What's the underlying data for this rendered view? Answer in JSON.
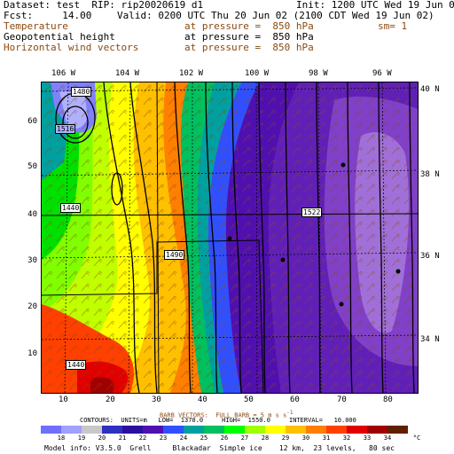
{
  "header": {
    "line1_left": "Dataset: test  RIP: rip20020619 d1",
    "line1_right": "Init: 1200 UTC Wed 19 Jun 02",
    "line2_left": "Fcst:     14.00",
    "line2_right": "Valid: 0200 UTC Thu 20 Jun 02 (2100 CDT Wed 19 Jun 02)",
    "fields": [
      {
        "name": "Temperature",
        "level": "at pressure =  850 hPa",
        "extra": "sm= 1",
        "color": "#8b4a10"
      },
      {
        "name": "Geopotential height",
        "level": "at pressure =  850 hPa",
        "extra": "",
        "color": "#000000"
      },
      {
        "name": "Horizontal wind vectors",
        "level": "at pressure =  850 hPa",
        "extra": "",
        "color": "#8b4a10"
      }
    ]
  },
  "map": {
    "lon_labels": [
      "106 W",
      "104 W",
      "102 W",
      "100 W",
      "98 W",
      "96 W"
    ],
    "lat_labels": [
      "40 N",
      "38 N",
      "36 N",
      "34 N"
    ],
    "x_ticks": [
      "10",
      "20",
      "30",
      "40",
      "50",
      "60",
      "70",
      "80"
    ],
    "y_ticks": [
      "10",
      "20",
      "30",
      "40",
      "50",
      "60"
    ],
    "contour_labels": [
      "1480",
      "1516",
      "1440",
      "1490",
      "1522",
      "1440"
    ]
  },
  "legend_text": {
    "barbs": "BARB VECTORS:  FULL BARB = 5 m s",
    "contours": "CONTOURS:  UNITS=m   LOW=  1370.0     HIGH=  1550.0     INTERVAL=   10.000"
  },
  "colorbar": {
    "values": [
      "18",
      "19",
      "20",
      "21",
      "22",
      "23",
      "24",
      "25",
      "26",
      "27",
      "28",
      "29",
      "30",
      "31",
      "32",
      "33",
      "34"
    ],
    "unit": "°C",
    "colors": [
      "#6f6fff",
      "#a0a0ff",
      "#c8c8c8",
      "#3030c0",
      "#2a10a0",
      "#5010b0",
      "#3050ff",
      "#00a0a0",
      "#00c060",
      "#00ff00",
      "#a0ff00",
      "#ffff00",
      "#ffc000",
      "#ff8000",
      "#ff4000",
      "#e00000",
      "#a00000",
      "#602000"
    ]
  },
  "footer": "Model info: V3.5.0  Grell     Blackadar  Simple ice    12 km,  23 levels,   80 sec"
}
